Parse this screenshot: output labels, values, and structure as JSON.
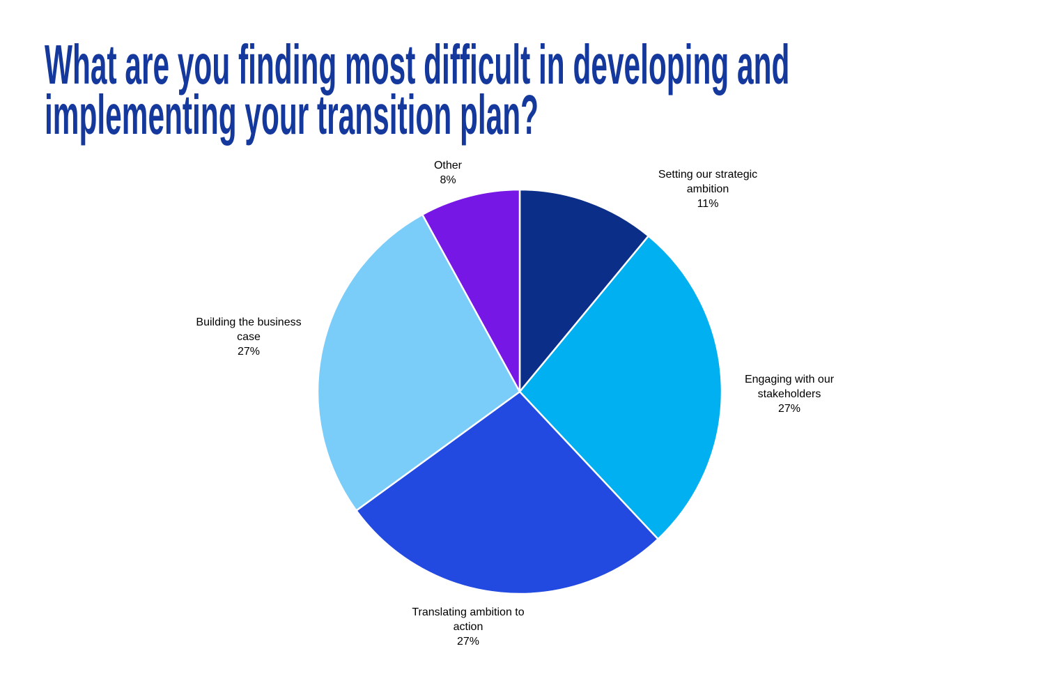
{
  "page": {
    "background_color": "#FFFFFF"
  },
  "title": {
    "text": "What are you finding most difficult in developing and implementing your transition plan?",
    "line1": "What are you finding most difficult in developing and",
    "line2": "implementing your transition plan?",
    "color": "#14389C"
  },
  "chart_data": {
    "type": "pie",
    "title": "What are you finding most difficult in developing and implementing your transition plan?",
    "start_angle_deg": 0,
    "direction": "clockwise",
    "legend": "none",
    "labels_position": "outside",
    "slice_border_color": "#FFFFFF",
    "slices": [
      {
        "label": "Setting our strategic ambition",
        "value": 11,
        "percent_label": "11%",
        "color": "#0B2E88"
      },
      {
        "label": "Engaging with our stakeholders",
        "value": 27,
        "percent_label": "27%",
        "color": "#00B0F0"
      },
      {
        "label": "Translating ambition to action",
        "value": 27,
        "percent_label": "27%",
        "color": "#2249E0"
      },
      {
        "label": "Building the business case",
        "value": 27,
        "percent_label": "27%",
        "color": "#7BCDF9"
      },
      {
        "label": "Other",
        "value": 8,
        "percent_label": "8%",
        "color": "#7717E5"
      }
    ]
  }
}
